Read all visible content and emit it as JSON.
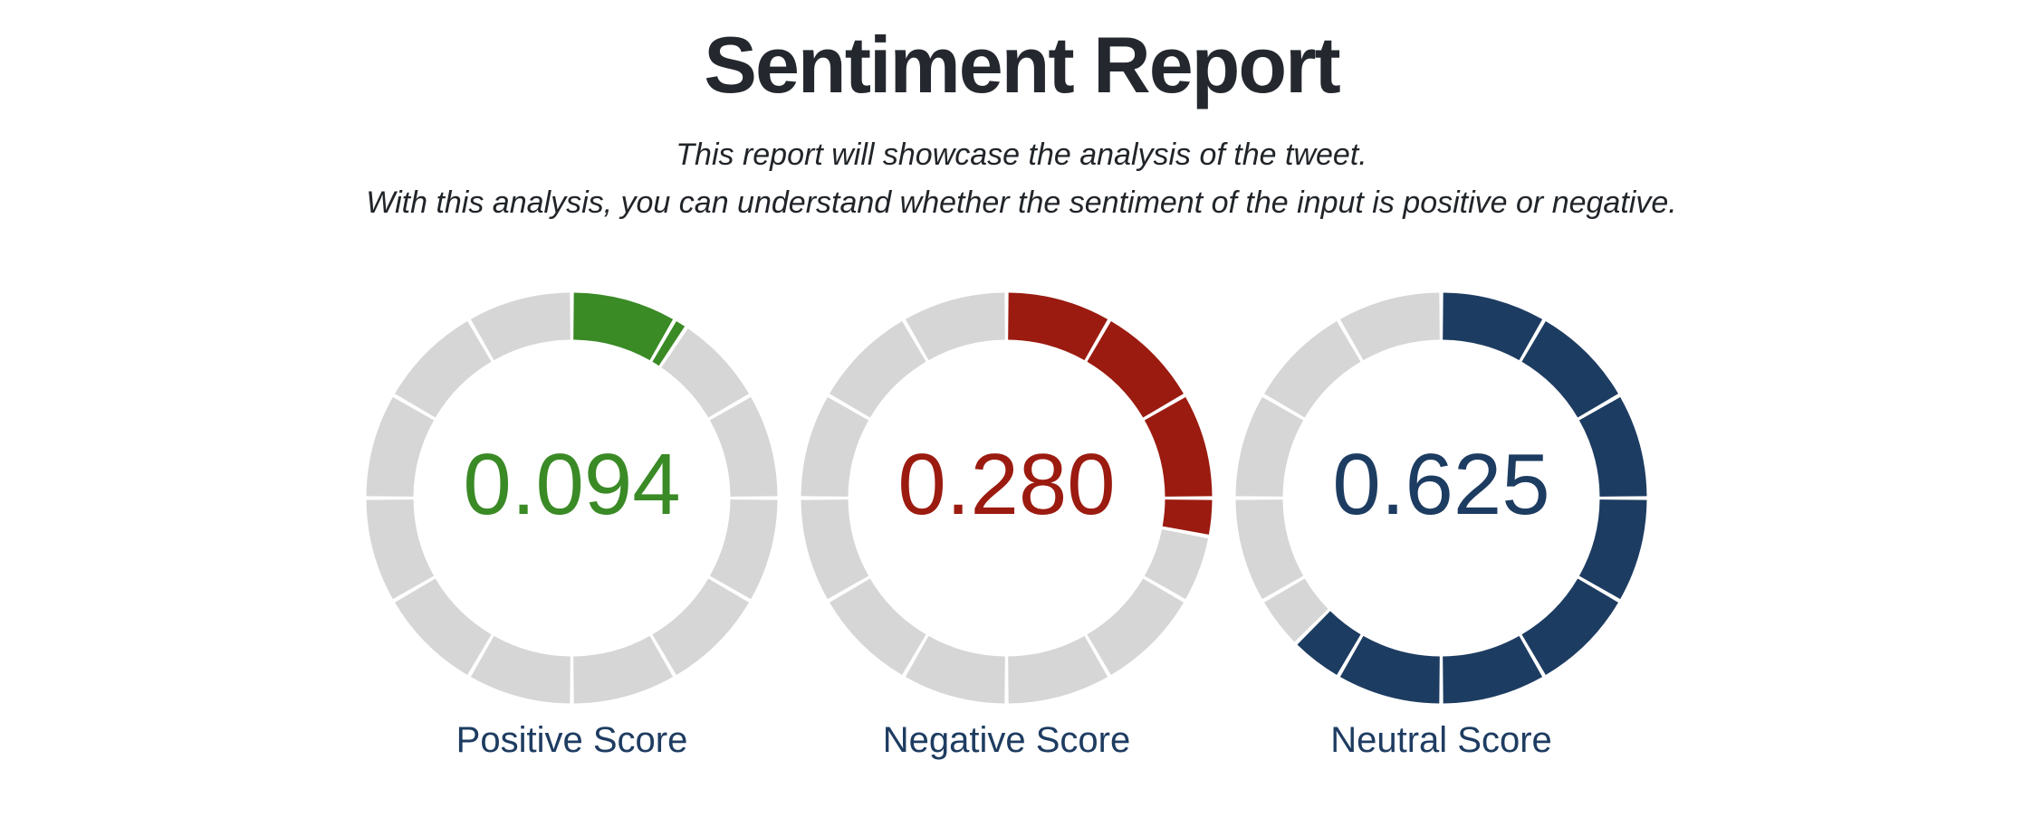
{
  "page": {
    "title": "Sentiment Report",
    "subtitle": {
      "line1": "This report will showcase the analysis of the tweet.",
      "line2": "With this analysis, you can understand whether the sentiment of the input is positive or negative."
    }
  },
  "colors": {
    "positive": "#3a8a26",
    "negative": "#9b1b10",
    "neutral": "#1d3c61",
    "track": "#d6d6d6",
    "title_text": "#24282e",
    "subtitle_text": "#212529",
    "caption_text": "#1e3c61"
  },
  "gauges": [
    {
      "id": "positive",
      "caption": "Positive Score",
      "value": 0.094,
      "value_label": "0.094",
      "color": "#3a8a26"
    },
    {
      "id": "negative",
      "caption": "Negative Score",
      "value": 0.28,
      "value_label": "0.280",
      "color": "#9b1b10"
    },
    {
      "id": "neutral",
      "caption": "Neutral Score",
      "value": 0.625,
      "value_label": "0.625",
      "color": "#1d3c61"
    }
  ],
  "chart_data": [
    {
      "type": "pie",
      "variant": "segmented-ring-gauge",
      "title": "Positive Score",
      "value": 0.094,
      "range": [
        0,
        1
      ],
      "segments": 12,
      "fill_direction": "clockwise-from-top",
      "color": "#3a8a26",
      "track_color": "#d6d6d6",
      "center_label": "0.094"
    },
    {
      "type": "pie",
      "variant": "segmented-ring-gauge",
      "title": "Negative Score",
      "value": 0.28,
      "range": [
        0,
        1
      ],
      "segments": 12,
      "fill_direction": "clockwise-from-top",
      "color": "#9b1b10",
      "track_color": "#d6d6d6",
      "center_label": "0.280"
    },
    {
      "type": "pie",
      "variant": "segmented-ring-gauge",
      "title": "Neutral Score",
      "value": 0.625,
      "range": [
        0,
        1
      ],
      "segments": 12,
      "fill_direction": "clockwise-from-top",
      "color": "#1d3c61",
      "track_color": "#d6d6d6",
      "center_label": "0.625"
    }
  ]
}
